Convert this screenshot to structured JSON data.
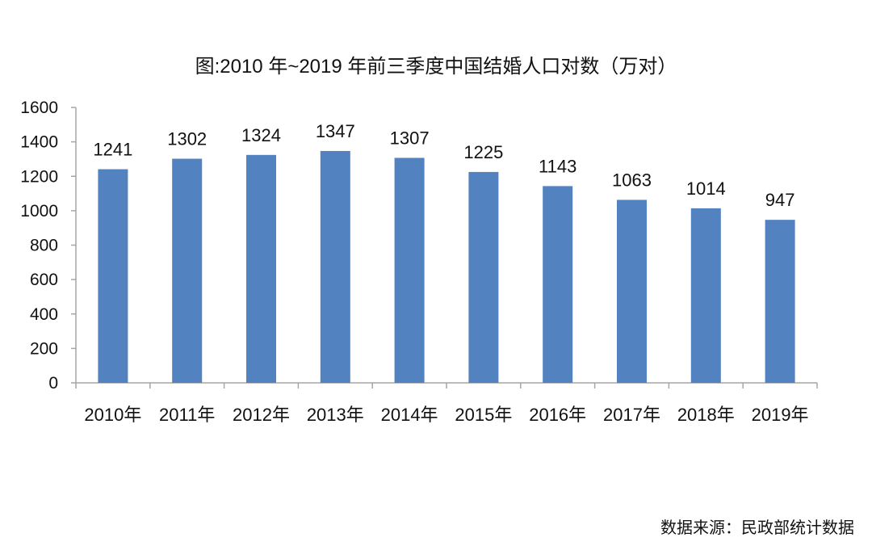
{
  "chart_data": {
    "type": "bar",
    "title": "图:2010 年~2019 年前三季度中国结婚人口对数（万对）",
    "categories": [
      "2010年",
      "2011年",
      "2012年",
      "2013年",
      "2014年",
      "2015年",
      "2016年",
      "2017年",
      "2018年",
      "2019年"
    ],
    "values": [
      1241,
      1302,
      1324,
      1347,
      1307,
      1225,
      1143,
      1063,
      1014,
      947
    ],
    "data_labels": [
      "1241",
      "1302",
      "1324",
      "1347",
      "1307",
      "1225",
      "1143",
      "1063",
      "1014",
      "947"
    ],
    "ylim": [
      0,
      1600
    ],
    "yticks": [
      0,
      200,
      400,
      600,
      800,
      1000,
      1200,
      1400,
      1600
    ],
    "ytick_labels": [
      "0",
      "200",
      "400",
      "600",
      "800",
      "1000",
      "1200",
      "1400",
      "1600"
    ],
    "xlabel": "",
    "ylabel": "",
    "grid": false,
    "bar_color": "#5282bf",
    "axis_color": "#a6a6a6"
  },
  "source": "数据来源：民政部统计数据"
}
